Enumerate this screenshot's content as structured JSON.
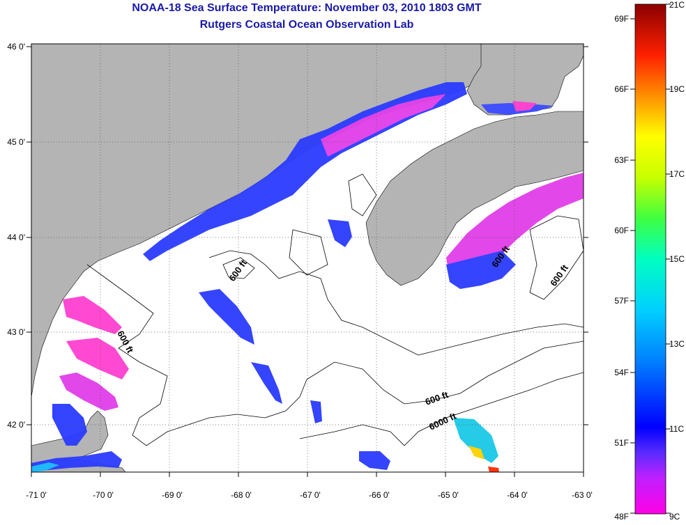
{
  "header": {
    "title": "NOAA-18 Sea Surface Temperature:  November 03, 2010 1803 GMT",
    "subtitle": "Rutgers Coastal Ocean Observation Lab"
  },
  "map": {
    "latitude_labels": [
      "46 0'",
      "45 0'",
      "44 0'",
      "43 0'",
      "42 0'"
    ],
    "longitude_labels": [
      "-71 0'",
      "-70 0'",
      "-69 0'",
      "-68 0'",
      "-67 0'",
      "-66 0'",
      "-65 0'",
      "-64 0'",
      "-63 0'"
    ],
    "contour_labels": [
      "600 ft",
      "600 ft",
      "600 ft",
      "600 ft",
      "600 ft",
      "6000 ft"
    ],
    "colors": {
      "land": "#b4b4b4",
      "ocean_no_data": "#ffffff",
      "sst_cold": "#ff33cc",
      "sst_mid": "#2a3bff"
    }
  },
  "colorbar": {
    "fahrenheit_labels": [
      "69F",
      "66F",
      "63F",
      "60F",
      "57F",
      "54F",
      "51F",
      "48F"
    ],
    "celsius_labels": [
      "21C",
      "19C",
      "17C",
      "15C",
      "13C",
      "11C",
      "9C"
    ],
    "range_celsius": [
      9,
      21
    ],
    "range_fahrenheit": [
      48,
      69
    ]
  }
}
